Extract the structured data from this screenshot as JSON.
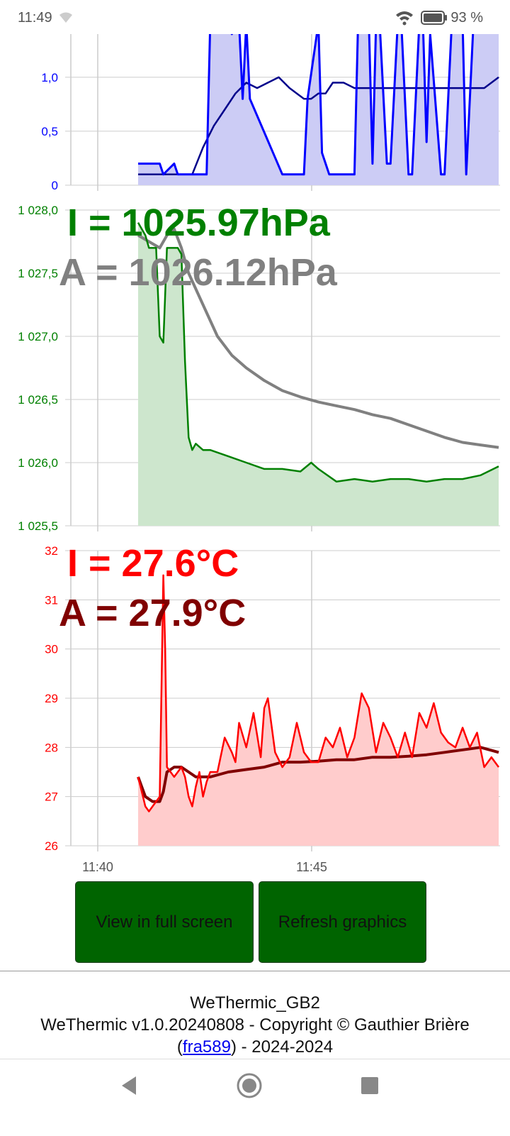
{
  "status": {
    "time": "11:49",
    "battery": "93 %"
  },
  "charts": [
    {
      "chart_data": {
        "type": "area",
        "yticks": [
          "0",
          "0,5",
          "1,0"
        ],
        "ylim": [
          0,
          1.4
        ],
        "color": "#0000ff",
        "fill": "#ccccf5",
        "avg_color": "#00008b",
        "x": [
          0,
          6,
          7,
          10,
          11,
          13,
          14,
          19,
          20,
          25,
          26,
          28,
          29,
          30,
          31,
          40,
          41,
          43,
          44,
          46,
          47,
          50,
          51,
          53,
          54,
          60,
          61,
          64,
          65,
          66,
          67,
          69,
          70,
          72,
          73,
          75,
          76,
          78,
          79,
          80,
          81,
          84,
          85,
          87,
          88,
          90,
          91,
          93,
          94,
          96,
          97,
          99,
          100
        ],
        "instant": [
          0.2,
          0.2,
          0.1,
          0.2,
          0.1,
          0.1,
          0.1,
          0.1,
          1.5,
          1.5,
          1.4,
          1.5,
          0.8,
          1.5,
          0.8,
          0.1,
          0.1,
          0.1,
          0.1,
          0.1,
          0.8,
          1.5,
          0.3,
          0.1,
          0.1,
          0.1,
          1.5,
          1.5,
          0.2,
          1.5,
          1.5,
          0.2,
          0.2,
          1.5,
          1.5,
          0.1,
          0.1,
          1.5,
          1.5,
          0.4,
          1.4,
          0.1,
          0.1,
          1.5,
          1.5,
          1.5,
          0.1,
          1.5,
          1.5,
          1.5,
          1.5,
          1.5,
          1.5
        ],
        "avg_x": [
          0,
          15,
          18,
          21,
          24,
          27,
          30,
          33,
          36,
          39,
          42,
          44,
          46,
          48,
          50,
          52,
          54,
          57,
          60,
          63,
          66,
          69,
          72,
          75,
          78,
          81,
          84,
          87,
          90,
          93,
          96,
          100
        ],
        "avg": [
          0.1,
          0.1,
          0.35,
          0.55,
          0.7,
          0.85,
          0.95,
          0.9,
          0.95,
          1.0,
          0.9,
          0.85,
          0.8,
          0.8,
          0.85,
          0.85,
          0.95,
          0.95,
          0.9,
          0.9,
          0.9,
          0.9,
          0.9,
          0.9,
          0.9,
          0.9,
          0.9,
          0.9,
          0.9,
          0.9,
          0.9,
          1.0
        ]
      }
    },
    {
      "instant_label": "I = 1025.97hPa",
      "average_label": "A = 1026.12hPa",
      "chart_data": {
        "type": "area",
        "yticks": [
          "1 025,5",
          "1 026,0",
          "1 026,5",
          "1 027,0",
          "1 027,5",
          "1 028,0"
        ],
        "ylim": [
          1025.5,
          1028.0
        ],
        "color": "#008000",
        "fill": "#cde6cd",
        "avg_color": "#808080",
        "x": [
          0,
          2,
          3,
          5,
          6,
          7,
          8,
          10,
          11,
          12,
          13,
          14,
          15,
          16,
          18,
          20,
          25,
          30,
          35,
          40,
          45,
          48,
          50,
          55,
          60,
          65,
          70,
          75,
          80,
          85,
          90,
          95,
          100
        ],
        "instant": [
          1027.9,
          1027.8,
          1027.7,
          1027.7,
          1027.0,
          1026.95,
          1027.7,
          1027.7,
          1027.7,
          1027.65,
          1026.8,
          1026.2,
          1026.1,
          1026.15,
          1026.1,
          1026.1,
          1026.05,
          1026.0,
          1025.95,
          1025.95,
          1025.93,
          1026.0,
          1025.95,
          1025.85,
          1025.87,
          1025.85,
          1025.87,
          1025.87,
          1025.85,
          1025.87,
          1025.87,
          1025.9,
          1025.97
        ],
        "avg_x": [
          0,
          3,
          6,
          8,
          10,
          12,
          14,
          18,
          22,
          26,
          30,
          35,
          40,
          45,
          50,
          55,
          60,
          65,
          70,
          75,
          80,
          85,
          90,
          95,
          100
        ],
        "avg": [
          1027.8,
          1027.75,
          1027.7,
          1027.8,
          1027.85,
          1027.7,
          1027.5,
          1027.25,
          1027.0,
          1026.85,
          1026.75,
          1026.65,
          1026.57,
          1026.52,
          1026.48,
          1026.45,
          1026.42,
          1026.38,
          1026.35,
          1026.3,
          1026.25,
          1026.2,
          1026.16,
          1026.14,
          1026.12
        ]
      }
    },
    {
      "instant_label": "I = 27.6°C",
      "average_label": "A = 27.9°C",
      "chart_data": {
        "type": "area",
        "yticks": [
          "26",
          "27",
          "28",
          "29",
          "30",
          "31",
          "32"
        ],
        "ylim": [
          26,
          32
        ],
        "color": "#ff0000",
        "fill": "#ffcccc",
        "avg_color": "#800000",
        "x": [
          0,
          1,
          2,
          3,
          4,
          5,
          6,
          7,
          7.5,
          8,
          9,
          10,
          11,
          12,
          13,
          14,
          15,
          16,
          17,
          18,
          19,
          20,
          22,
          24,
          26,
          27,
          28,
          30,
          32,
          34,
          35,
          36,
          38,
          40,
          42,
          44,
          45,
          46,
          48,
          50,
          52,
          54,
          56,
          58,
          60,
          62,
          64,
          66,
          68,
          70,
          72,
          74,
          76,
          78,
          80,
          82,
          84,
          86,
          88,
          90,
          92,
          94,
          96,
          98,
          100
        ],
        "instant": [
          27.4,
          27.1,
          26.8,
          26.7,
          26.8,
          26.9,
          27.0,
          31.5,
          30.0,
          27.6,
          27.5,
          27.4,
          27.5,
          27.6,
          27.4,
          27.0,
          26.8,
          27.2,
          27.5,
          27.0,
          27.3,
          27.5,
          27.5,
          28.2,
          27.9,
          27.7,
          28.5,
          28.0,
          28.7,
          27.8,
          28.8,
          29.0,
          27.9,
          27.6,
          27.8,
          28.5,
          28.2,
          27.9,
          27.7,
          27.7,
          28.2,
          28.0,
          28.4,
          27.8,
          28.2,
          29.1,
          28.8,
          27.9,
          28.5,
          28.2,
          27.8,
          28.3,
          27.8,
          28.7,
          28.4,
          28.9,
          28.3,
          28.1,
          28.0,
          28.4,
          28.0,
          28.3,
          27.6,
          27.8,
          27.6
        ],
        "avg_x": [
          0,
          2,
          4,
          6,
          7,
          8,
          10,
          12,
          14,
          16,
          18,
          20,
          25,
          30,
          35,
          40,
          45,
          50,
          55,
          60,
          65,
          70,
          75,
          80,
          85,
          90,
          95,
          100
        ],
        "avg": [
          27.4,
          27.0,
          26.9,
          26.9,
          27.1,
          27.5,
          27.6,
          27.6,
          27.5,
          27.4,
          27.4,
          27.4,
          27.5,
          27.55,
          27.6,
          27.7,
          27.7,
          27.72,
          27.75,
          27.75,
          27.8,
          27.8,
          27.82,
          27.85,
          27.9,
          27.95,
          28.0,
          27.9
        ]
      }
    }
  ],
  "x_axis": {
    "ticks": [
      "11:40",
      "11:45"
    ]
  },
  "buttons": {
    "fullscreen": "View in full screen",
    "refresh": "Refresh graphics"
  },
  "footer": {
    "line1": "WeThermic_GB2",
    "line2": "WeThermic v1.0.20240808 - Copyright © Gauthier Brière",
    "paren_open": "(",
    "link": "fra589",
    "line3_rest": ") - 2024-2024"
  }
}
